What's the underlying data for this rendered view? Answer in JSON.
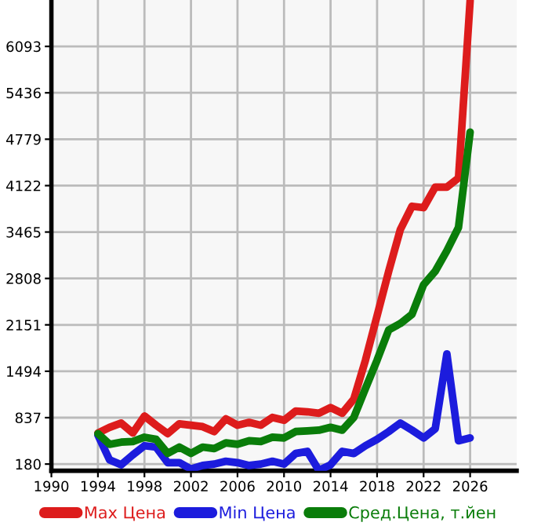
{
  "chart_data": {
    "type": "line",
    "x": [
      1994,
      1995,
      1996,
      1997,
      1998,
      1999,
      2000,
      2001,
      2002,
      2003,
      2004,
      2005,
      2006,
      2007,
      2008,
      2009,
      2010,
      2011,
      2012,
      2013,
      2014,
      2015,
      2016,
      2017,
      2018,
      2019,
      2020,
      2021,
      2022,
      2023,
      2024,
      2025,
      2026
    ],
    "series": [
      {
        "name": "Max Цена",
        "color": "#dd1c1c",
        "values": [
          620,
          700,
          760,
          620,
          860,
          730,
          610,
          750,
          730,
          710,
          640,
          820,
          730,
          770,
          730,
          840,
          800,
          930,
          920,
          900,
          980,
          900,
          1100,
          1650,
          2280,
          2910,
          3500,
          3830,
          3810,
          4100,
          4100,
          4230,
          6740
        ]
      },
      {
        "name": "Min Цена",
        "color": "#1c1cdd",
        "values": [
          590,
          240,
          170,
          310,
          440,
          420,
          200,
          200,
          110,
          160,
          180,
          220,
          200,
          160,
          180,
          220,
          180,
          330,
          360,
          90,
          170,
          360,
          330,
          440,
          530,
          640,
          760,
          660,
          550,
          680,
          1740,
          510,
          550
        ]
      },
      {
        "name": "Сред.Цена, т.йен",
        "color": "#0a7d0a",
        "values": [
          610,
          460,
          490,
          500,
          560,
          530,
          330,
          420,
          330,
          420,
          400,
          480,
          460,
          510,
          500,
          560,
          550,
          640,
          650,
          660,
          700,
          660,
          840,
          1250,
          1650,
          2080,
          2170,
          2300,
          2720,
          2910,
          3200,
          3530,
          4880
        ]
      }
    ],
    "xlim": [
      1990,
      2030
    ],
    "xticks": [
      1990,
      1994,
      1998,
      2002,
      2006,
      2010,
      2014,
      2018,
      2022,
      2026
    ],
    "ylim": [
      85,
      6750
    ],
    "yticks": [
      180,
      837,
      1494,
      2151,
      2808,
      3465,
      4122,
      4779,
      5436,
      6093
    ],
    "grid": true,
    "legend": "bottom",
    "marker": "none",
    "line_style": "solid"
  }
}
